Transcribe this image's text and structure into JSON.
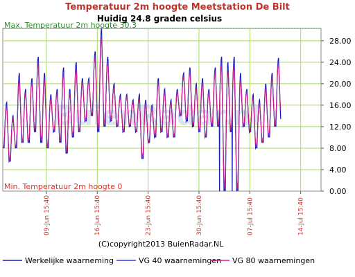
{
  "title": "Temperatuur 2m hoogte Meetstation De Bilt",
  "subtitle": "Huidig 24.8 graden celsius",
  "max_label": "Max. Temperatuur 2m hoogte 30.3",
  "min_label": "Min. Temperatuur 2m hoogte 0",
  "watermark": "BuienRadar.nl",
  "copyright": "(C)copyright2013 BuienRadar.NL",
  "colors": {
    "title": "#c0352b",
    "actual": "#1c1cb4",
    "vg40": "#3a3aee",
    "vg80": "#d81b7a",
    "grid": "#a8dc60",
    "max_line": "#2e8b2e",
    "x_tick": "#c0352b",
    "min_label": "#e0302a"
  },
  "chart_data": {
    "type": "line",
    "title": "Temperatuur 2m hoogte Meetstation De Bilt",
    "subtitle": "Huidig 24.8 graden celsius",
    "ylim": [
      0,
      30.3
    ],
    "y_ticks": [
      "0.00",
      "4.00",
      "8.00",
      "12.00",
      "16.00",
      "20.00",
      "24.00",
      "28.00"
    ],
    "x_range_days": [
      0,
      38
    ],
    "x_tick_labels": [
      {
        "label": "09-Jun 15:40",
        "day": 6
      },
      {
        "label": "16-Jun 15:40",
        "day": 13
      },
      {
        "label": "23-Jun 15:40",
        "day": 20
      },
      {
        "label": "30-Jun 15:40",
        "day": 27
      },
      {
        "label": "07-Jul 15:40",
        "day": 34
      },
      {
        "label": "14-Jul 15:40",
        "day": 41
      }
    ],
    "max_value": 30.3,
    "min_value": 0,
    "current_value": 24.8,
    "grid": true,
    "legend": "bottom",
    "series": [
      {
        "name": "Werkelijke waarneming",
        "style": "actual",
        "color": "#1c1cb4",
        "daily_max": [
          16.5,
          14,
          22,
          19,
          21,
          25,
          22,
          18,
          19,
          23,
          19,
          24,
          21,
          21,
          26,
          30.3,
          25,
          20,
          18,
          18,
          17,
          18,
          17,
          16,
          21,
          19,
          17,
          19,
          22,
          23,
          20,
          21,
          19,
          23,
          25,
          24,
          25,
          22,
          19,
          18,
          17,
          20,
          22,
          24.8
        ],
        "daily_min": [
          8,
          5.5,
          8,
          9,
          9,
          11,
          9,
          8,
          11,
          9,
          7,
          10,
          11,
          13,
          14,
          11,
          12,
          13,
          12,
          11,
          12,
          11,
          6,
          9,
          10,
          11,
          10,
          10,
          14,
          13,
          12,
          11,
          10,
          12,
          12,
          0,
          11,
          0,
          12,
          11,
          8,
          9,
          10,
          12
        ]
      },
      {
        "name": "VG 40 waarnemingen",
        "style": "smooth",
        "color": "#3a3aee"
      },
      {
        "name": "VG 80 waarnemingen",
        "style": "smoother",
        "color": "#d81b7a"
      }
    ]
  },
  "legend": [
    {
      "label": "Werkelijke waarneming",
      "color": "#1c1cb4"
    },
    {
      "label": "VG 40 waarnemingen",
      "color": "#3a3aee"
    },
    {
      "label": "VG 80 waarnemingen",
      "color": "#d81b7a"
    }
  ]
}
